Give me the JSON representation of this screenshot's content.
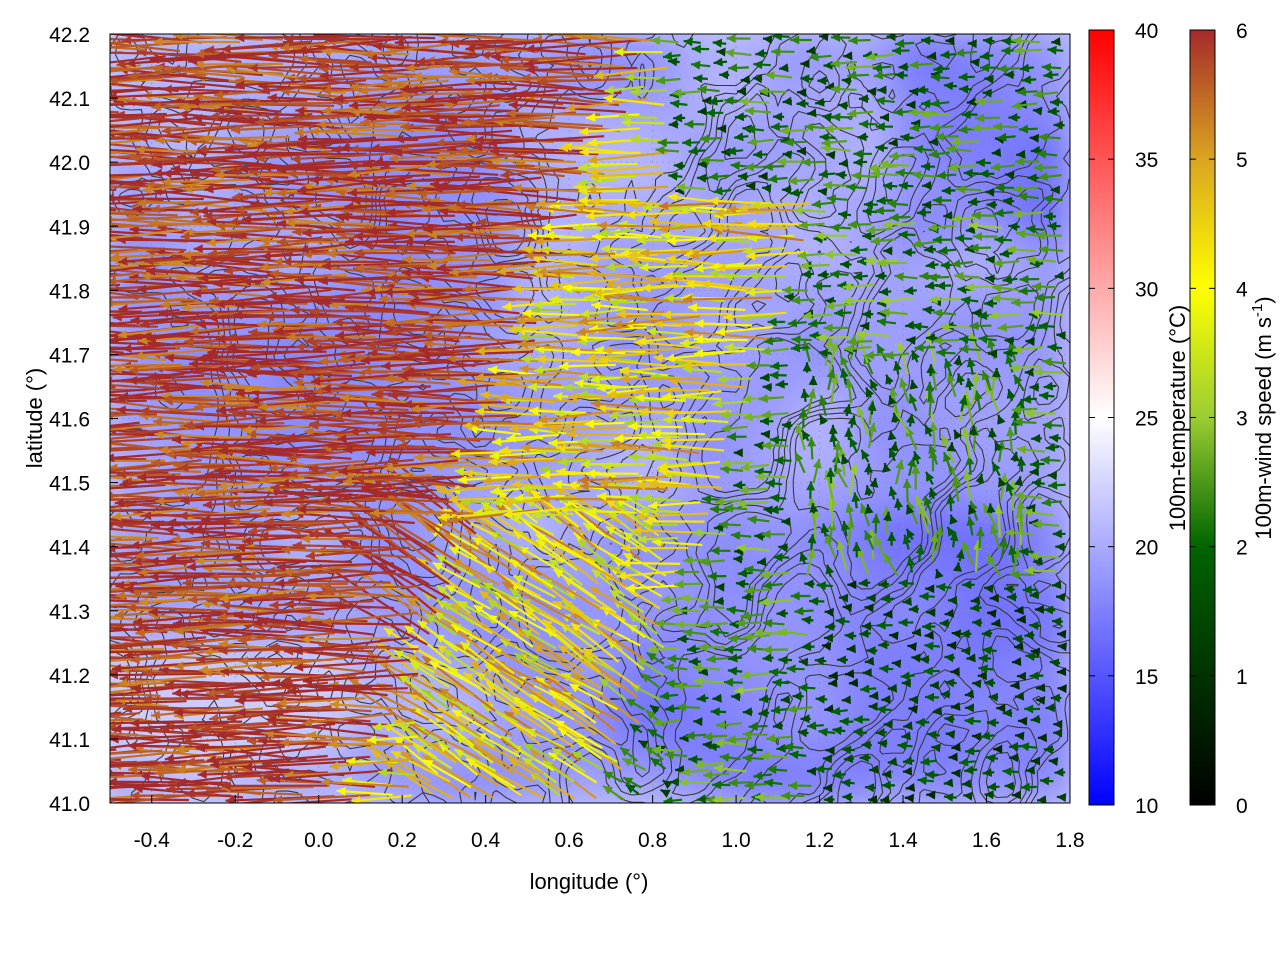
{
  "chart_data": {
    "type": "heatmap",
    "title": "",
    "xlabel": "longitude (°)",
    "ylabel": "latitude (°)",
    "xlim": [
      -0.5,
      1.8
    ],
    "ylim": [
      41.0,
      42.2
    ],
    "xticks": [
      "-0.4",
      "-0.2",
      "0.0",
      "0.2",
      "0.4",
      "0.6",
      "0.8",
      "1.0",
      "1.2",
      "1.4",
      "1.6",
      "1.8"
    ],
    "yticks": [
      "41.0",
      "41.1",
      "41.2",
      "41.3",
      "41.4",
      "41.5",
      "41.6",
      "41.7",
      "41.8",
      "41.9",
      "42.0",
      "42.1",
      "42.2"
    ],
    "grid": true,
    "layers": [
      {
        "kind": "filled-field",
        "name": "100m-temperature",
        "unit": "°C"
      },
      {
        "kind": "wind-vectors",
        "name": "100m-wind speed",
        "unit": "m s-1"
      },
      {
        "kind": "contour-lines",
        "color": "#333333"
      }
    ],
    "colorbars": [
      {
        "label": "100m-temperature (°C)",
        "ticks": [
          "10",
          "15",
          "20",
          "25",
          "30",
          "35",
          "40"
        ],
        "range": [
          10,
          40
        ],
        "colors": [
          "#0000ff",
          "#ffffff",
          "#ff0000"
        ]
      },
      {
        "label_main": "100m-wind speed (m s",
        "label_sup": "-1",
        "label_end": ")",
        "ticks": [
          "0",
          "1",
          "2",
          "3",
          "4",
          "5",
          "6"
        ],
        "range": [
          0,
          6
        ],
        "colors": [
          "#000000",
          "#006400",
          "#9acd32",
          "#ffff00",
          "#daa520",
          "#a52a2a"
        ]
      }
    ]
  }
}
